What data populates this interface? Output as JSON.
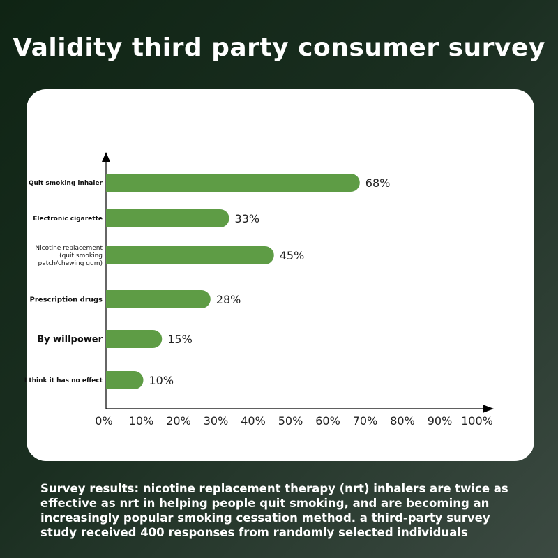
{
  "title": "Validity third party consumer survey",
  "caption": "Survey results: nicotine replacement therapy (nrt) inhalers are twice as effective as nrt in helping people quit smoking, and are becoming an increasingly popular smoking cessation method. a third-party survey study received 400 responses from randomly selected individuals",
  "colors": {
    "bar": "#5e9c45",
    "axis": "#000000",
    "card": "#ffffff"
  },
  "chart_data": {
    "type": "bar",
    "orientation": "horizontal",
    "categories": [
      [
        "Quit smoking inhaler"
      ],
      [
        "Electronic cigarette"
      ],
      [
        "Nicotine replacement",
        "(quit smoking",
        "patch/chewing gum)"
      ],
      [
        "Prescription drugs"
      ],
      [
        "By willpower"
      ],
      [
        "I think it has no effect"
      ]
    ],
    "values": [
      68,
      33,
      45,
      28,
      15,
      10
    ],
    "value_labels": [
      "68%",
      "33%",
      "45%",
      "28%",
      "15%",
      "10%"
    ],
    "x_ticks": [
      "0%",
      "10%",
      "20%",
      "30%",
      "40%",
      "50%",
      "60%",
      "70%",
      "80%",
      "90%",
      "100%"
    ],
    "xlim": [
      0,
      100
    ],
    "grid": false
  }
}
